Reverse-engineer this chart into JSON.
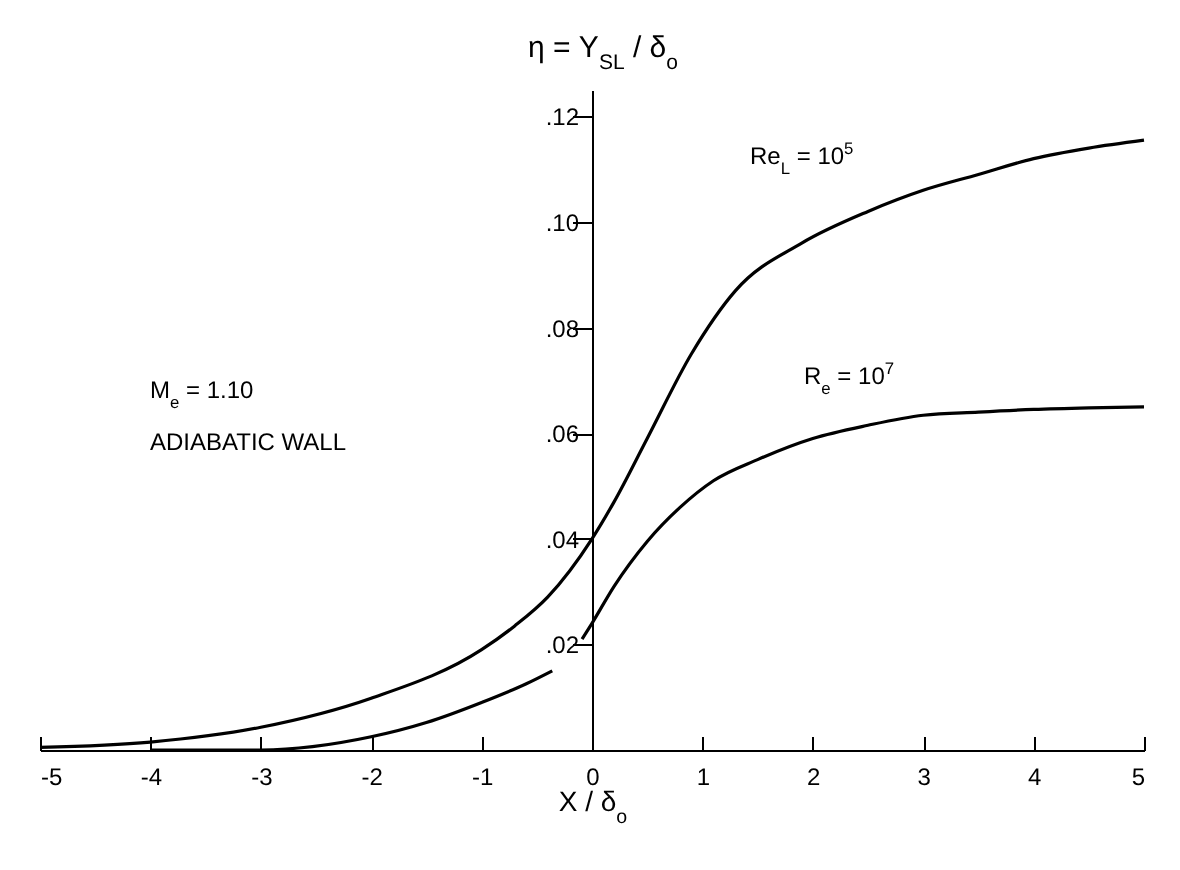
{
  "chart_data": {
    "type": "line",
    "ylabel": "η = Y$_{SL}$ / δ$_{o}$",
    "xlabel": "X / δ$_{o}$",
    "xlim": [
      -5,
      5
    ],
    "xticks": [
      -5,
      -4,
      -3,
      -2,
      -1,
      0,
      1,
      2,
      3,
      4,
      5
    ],
    "ylim": [
      0,
      0.125
    ],
    "yticks": [
      {
        "value": 0.02,
        "label": ".02"
      },
      {
        "value": 0.04,
        "label": ".04"
      },
      {
        "value": 0.06,
        "label": ".06"
      },
      {
        "value": 0.08,
        "label": ".08"
      },
      {
        "value": 0.1,
        "label": ".10"
      },
      {
        "value": 0.12,
        "label": ".12"
      }
    ],
    "series": [
      {
        "name": "Re$_{L}$ = 10$^{5}$",
        "color": "#000000",
        "x": [
          -5,
          -4,
          -3,
          -2,
          -1,
          -0.7,
          -0.4,
          0,
          0.2,
          0.5,
          0.9,
          1.3,
          1.9,
          2.5,
          3,
          3.5,
          4,
          4.5,
          5
        ],
        "values": [
          0.0005,
          0.0015,
          0.0043,
          0.0098,
          0.019,
          0.0235,
          0.029,
          0.04,
          0.047,
          0.059,
          0.075,
          0.087,
          0.096,
          0.102,
          0.106,
          0.109,
          0.112,
          0.114,
          0.1155
        ]
      },
      {
        "name": "R$_{e}$ = 10$^{7}$",
        "color": "#000000",
        "x": [
          -4,
          -3,
          -2,
          -1.5,
          -1,
          -0.6,
          -0.36,
          -0.2,
          -0.09,
          0,
          0.2,
          0.5,
          0.8,
          1.1,
          1.5,
          2,
          2.5,
          3,
          3.5,
          4,
          4.5,
          5
        ],
        "values": [
          0,
          0,
          0.0025,
          0.0052,
          0.009,
          0.0125,
          0.015,
          null,
          0.021,
          0.024,
          0.031,
          0.0395,
          0.046,
          0.051,
          0.055,
          0.059,
          0.0615,
          0.0634,
          0.064,
          0.0645,
          0.0648,
          0.065
        ]
      }
    ],
    "annotations": [
      "M$_{e}$ = 1.10",
      "ADIABATIC WALL"
    ]
  }
}
